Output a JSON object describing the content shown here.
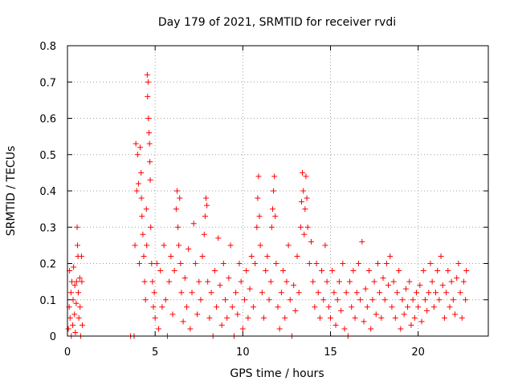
{
  "chart_data": {
    "type": "scatter",
    "title": "Day 179 of 2021, SRMTID for receiver rvdi",
    "xlabel": "GPS time / hours",
    "ylabel": "SRMTID / TECUs",
    "xlim": [
      0,
      24
    ],
    "ylim": [
      0,
      0.8
    ],
    "xticks": [
      0,
      5,
      10,
      15,
      20
    ],
    "xtick_labels": [
      "0",
      "5",
      "10",
      "15",
      "20"
    ],
    "yticks": [
      0,
      0.1,
      0.2,
      0.3,
      0.4,
      0.5,
      0.6,
      0.7,
      0.8
    ],
    "ytick_labels": [
      "0",
      "0.1",
      "0.2",
      "0.3",
      "0.4",
      "0.5",
      "0.6",
      "0.7",
      "0.8"
    ],
    "grid": true,
    "marker": "+",
    "color": "#ff0000",
    "series": [
      {
        "name": "SRMTID",
        "points": [
          [
            0.05,
            0.02
          ],
          [
            0.1,
            0.08
          ],
          [
            0.12,
            0.18
          ],
          [
            0.15,
            0.05
          ],
          [
            0.2,
            0.12
          ],
          [
            0.22,
            0.0
          ],
          [
            0.25,
            0.15
          ],
          [
            0.3,
            0.03
          ],
          [
            0.32,
            0.1
          ],
          [
            0.35,
            0.19
          ],
          [
            0.4,
            0.06
          ],
          [
            0.42,
            0.14
          ],
          [
            0.45,
            0.01
          ],
          [
            0.5,
            0.09
          ],
          [
            0.52,
            0.15
          ],
          [
            0.55,
            0.3
          ],
          [
            0.57,
            0.25
          ],
          [
            0.6,
            0.22
          ],
          [
            0.62,
            0.12
          ],
          [
            0.65,
            0.05
          ],
          [
            0.7,
            0.16
          ],
          [
            0.72,
            0.08
          ],
          [
            0.75,
            0.0
          ],
          [
            0.8,
            0.22
          ],
          [
            0.82,
            0.15
          ],
          [
            0.85,
            0.03
          ],
          [
            3.6,
            0.0
          ],
          [
            3.8,
            0.0
          ],
          [
            3.85,
            0.25
          ],
          [
            3.9,
            0.53
          ],
          [
            3.95,
            0.4
          ],
          [
            4.0,
            0.5
          ],
          [
            4.05,
            0.42
          ],
          [
            4.1,
            0.2
          ],
          [
            4.15,
            0.52
          ],
          [
            4.2,
            0.45
          ],
          [
            4.22,
            0.38
          ],
          [
            4.25,
            0.33
          ],
          [
            4.3,
            0.28
          ],
          [
            4.35,
            0.22
          ],
          [
            4.4,
            0.15
          ],
          [
            4.45,
            0.1
          ],
          [
            4.5,
            0.35
          ],
          [
            4.52,
            0.25
          ],
          [
            4.55,
            0.72
          ],
          [
            4.57,
            0.66
          ],
          [
            4.6,
            0.7
          ],
          [
            4.62,
            0.6
          ],
          [
            4.65,
            0.56
          ],
          [
            4.68,
            0.53
          ],
          [
            4.7,
            0.48
          ],
          [
            4.72,
            0.43
          ],
          [
            4.75,
            0.3
          ],
          [
            4.8,
            0.2
          ],
          [
            4.85,
            0.15
          ],
          [
            4.9,
            0.08
          ],
          [
            4.95,
            0.12
          ],
          [
            5.0,
            0.05
          ],
          [
            5.1,
            0.2
          ],
          [
            5.2,
            0.02
          ],
          [
            5.3,
            0.18
          ],
          [
            5.4,
            0.08
          ],
          [
            5.5,
            0.25
          ],
          [
            5.6,
            0.1
          ],
          [
            5.7,
            0.0
          ],
          [
            5.8,
            0.15
          ],
          [
            5.9,
            0.22
          ],
          [
            6.0,
            0.06
          ],
          [
            6.1,
            0.18
          ],
          [
            6.2,
            0.35
          ],
          [
            6.25,
            0.4
          ],
          [
            6.3,
            0.3
          ],
          [
            6.35,
            0.25
          ],
          [
            6.4,
            0.38
          ],
          [
            6.45,
            0.2
          ],
          [
            6.5,
            0.12
          ],
          [
            6.6,
            0.04
          ],
          [
            6.7,
            0.16
          ],
          [
            6.8,
            0.08
          ],
          [
            6.9,
            0.24
          ],
          [
            7.0,
            0.02
          ],
          [
            7.1,
            0.12
          ],
          [
            7.2,
            0.31
          ],
          [
            7.3,
            0.2
          ],
          [
            7.4,
            0.06
          ],
          [
            7.5,
            0.15
          ],
          [
            7.6,
            0.1
          ],
          [
            7.7,
            0.22
          ],
          [
            7.8,
            0.28
          ],
          [
            7.85,
            0.33
          ],
          [
            7.9,
            0.38
          ],
          [
            7.95,
            0.36
          ],
          [
            8.0,
            0.15
          ],
          [
            8.1,
            0.05
          ],
          [
            8.2,
            0.12
          ],
          [
            8.3,
            0.0
          ],
          [
            8.4,
            0.18
          ],
          [
            8.5,
            0.08
          ],
          [
            8.6,
            0.27
          ],
          [
            8.7,
            0.14
          ],
          [
            8.8,
            0.03
          ],
          [
            8.9,
            0.2
          ],
          [
            9.0,
            0.1
          ],
          [
            9.1,
            0.05
          ],
          [
            9.2,
            0.16
          ],
          [
            9.3,
            0.25
          ],
          [
            9.4,
            0.08
          ],
          [
            9.5,
            0.0
          ],
          [
            9.6,
            0.12
          ],
          [
            9.7,
            0.06
          ],
          [
            9.8,
            0.2
          ],
          [
            9.9,
            0.15
          ],
          [
            10.0,
            0.02
          ],
          [
            10.1,
            0.1
          ],
          [
            10.2,
            0.18
          ],
          [
            10.3,
            0.05
          ],
          [
            10.4,
            0.13
          ],
          [
            10.5,
            0.22
          ],
          [
            10.6,
            0.08
          ],
          [
            10.7,
            0.2
          ],
          [
            10.8,
            0.3
          ],
          [
            10.85,
            0.38
          ],
          [
            10.9,
            0.44
          ],
          [
            10.95,
            0.33
          ],
          [
            11.0,
            0.25
          ],
          [
            11.1,
            0.12
          ],
          [
            11.2,
            0.05
          ],
          [
            11.3,
            0.18
          ],
          [
            11.4,
            0.22
          ],
          [
            11.5,
            0.1
          ],
          [
            11.6,
            0.15
          ],
          [
            11.65,
            0.3
          ],
          [
            11.7,
            0.35
          ],
          [
            11.75,
            0.4
          ],
          [
            11.8,
            0.44
          ],
          [
            11.85,
            0.33
          ],
          [
            11.9,
            0.2
          ],
          [
            12.0,
            0.08
          ],
          [
            12.1,
            0.02
          ],
          [
            12.2,
            0.12
          ],
          [
            12.3,
            0.18
          ],
          [
            12.4,
            0.05
          ],
          [
            12.5,
            0.15
          ],
          [
            12.6,
            0.25
          ],
          [
            12.7,
            0.1
          ],
          [
            12.8,
            0.0
          ],
          [
            12.9,
            0.14
          ],
          [
            13.0,
            0.07
          ],
          [
            13.1,
            0.22
          ],
          [
            13.2,
            0.12
          ],
          [
            13.3,
            0.3
          ],
          [
            13.35,
            0.37
          ],
          [
            13.4,
            0.45
          ],
          [
            13.45,
            0.4
          ],
          [
            13.5,
            0.28
          ],
          [
            13.55,
            0.35
          ],
          [
            13.6,
            0.44
          ],
          [
            13.65,
            0.38
          ],
          [
            13.7,
            0.3
          ],
          [
            13.8,
            0.2
          ],
          [
            13.9,
            0.26
          ],
          [
            14.0,
            0.15
          ],
          [
            14.1,
            0.08
          ],
          [
            14.2,
            0.2
          ],
          [
            14.3,
            0.12
          ],
          [
            14.4,
            0.05
          ],
          [
            14.5,
            0.18
          ],
          [
            14.6,
            0.1
          ],
          [
            14.7,
            0.25
          ],
          [
            14.8,
            0.15
          ],
          [
            14.9,
            0.08
          ],
          [
            15.0,
            0.05
          ],
          [
            15.1,
            0.18
          ],
          [
            15.2,
            0.12
          ],
          [
            15.3,
            0.03
          ],
          [
            15.4,
            0.1
          ],
          [
            15.5,
            0.15
          ],
          [
            15.6,
            0.07
          ],
          [
            15.7,
            0.2
          ],
          [
            15.8,
            0.02
          ],
          [
            15.9,
            0.12
          ],
          [
            16.0,
            0.0
          ],
          [
            16.1,
            0.15
          ],
          [
            16.2,
            0.08
          ],
          [
            16.3,
            0.18
          ],
          [
            16.4,
            0.05
          ],
          [
            16.5,
            0.12
          ],
          [
            16.6,
            0.2
          ],
          [
            16.7,
            0.1
          ],
          [
            16.8,
            0.26
          ],
          [
            16.9,
            0.04
          ],
          [
            17.0,
            0.13
          ],
          [
            17.1,
            0.08
          ],
          [
            17.2,
            0.18
          ],
          [
            17.3,
            0.02
          ],
          [
            17.4,
            0.1
          ],
          [
            17.5,
            0.15
          ],
          [
            17.6,
            0.06
          ],
          [
            17.7,
            0.2
          ],
          [
            17.8,
            0.12
          ],
          [
            17.9,
            0.05
          ],
          [
            18.0,
            0.16
          ],
          [
            18.1,
            0.1
          ],
          [
            18.2,
            0.2
          ],
          [
            18.3,
            0.14
          ],
          [
            18.4,
            0.22
          ],
          [
            18.5,
            0.08
          ],
          [
            18.6,
            0.15
          ],
          [
            18.7,
            0.05
          ],
          [
            18.8,
            0.12
          ],
          [
            18.9,
            0.18
          ],
          [
            19.0,
            0.02
          ],
          [
            19.1,
            0.1
          ],
          [
            19.2,
            0.06
          ],
          [
            19.3,
            0.13
          ],
          [
            19.4,
            0.08
          ],
          [
            19.5,
            0.15
          ],
          [
            19.6,
            0.03
          ],
          [
            19.7,
            0.1
          ],
          [
            19.8,
            0.05
          ],
          [
            19.9,
            0.12
          ],
          [
            20.0,
            0.08
          ],
          [
            20.1,
            0.14
          ],
          [
            20.2,
            0.04
          ],
          [
            20.3,
            0.18
          ],
          [
            20.4,
            0.1
          ],
          [
            20.5,
            0.07
          ],
          [
            20.6,
            0.12
          ],
          [
            20.7,
            0.2
          ],
          [
            20.8,
            0.15
          ],
          [
            20.9,
            0.08
          ],
          [
            21.0,
            0.12
          ],
          [
            21.1,
            0.18
          ],
          [
            21.2,
            0.1
          ],
          [
            21.3,
            0.22
          ],
          [
            21.4,
            0.14
          ],
          [
            21.5,
            0.05
          ],
          [
            21.6,
            0.12
          ],
          [
            21.7,
            0.18
          ],
          [
            21.8,
            0.08
          ],
          [
            21.9,
            0.15
          ],
          [
            22.0,
            0.1
          ],
          [
            22.1,
            0.06
          ],
          [
            22.2,
            0.16
          ],
          [
            22.3,
            0.2
          ],
          [
            22.4,
            0.12
          ],
          [
            22.5,
            0.05
          ],
          [
            22.6,
            0.15
          ],
          [
            22.7,
            0.1
          ],
          [
            22.75,
            0.18
          ]
        ]
      }
    ]
  }
}
